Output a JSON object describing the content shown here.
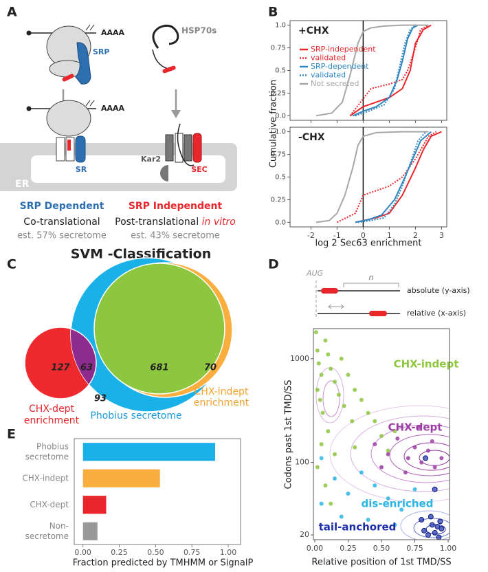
{
  "panel_labels": [
    "A",
    "B",
    "C",
    "D",
    "E"
  ],
  "panel_a": {
    "poly_a_1": "AAAA",
    "srp": "SRP",
    "poly_a_2": "AAAA",
    "sr": "SR",
    "hsp70": "HSP70s",
    "kar2": "Kar2",
    "sec": "SEC",
    "er": "ER",
    "left": {
      "title": "SRP Dependent",
      "mode": "Co-translational",
      "estimate": "est. 57% secretome"
    },
    "right": {
      "title": "SRP Independent",
      "mode": "Post-translational ",
      "mode_emphasis": "in vitro",
      "estimate": "est. 43% secretome"
    }
  },
  "panel_c": {
    "title": "SVM -Classification",
    "counts": {
      "dept_only": "127",
      "dept_phobius": "63",
      "all_three": "681",
      "indept_only": "70",
      "phobius_only": "93"
    },
    "dept_label": [
      "CHX-dept",
      "enrichment"
    ],
    "phobius_label": "Phobius secretome",
    "indept_label": [
      "CHX-indept",
      "enrichment"
    ]
  },
  "panel_d_schematic": {
    "start": "AUG",
    "n": "n",
    "absolute": "absolute (y-axis)",
    "relative": "relative (x-axis)"
  },
  "chart_data": [
    {
      "type": "line",
      "xlabel": "log 2 Sec63 enrichment",
      "ylabel": "Cumulative fraction",
      "xlim": [
        -2.8,
        3.2
      ],
      "xticks": [
        -2,
        -1,
        0,
        1,
        2,
        3
      ],
      "ylim": [
        -0.05,
        1.05
      ],
      "yticks": [
        {
          "value": 0,
          "label": "0.0"
        },
        0.25,
        0.5,
        0.75,
        {
          "value": 1,
          "label": "1.0"
        }
      ],
      "reference_x": 0,
      "legend": [
        {
          "name": "SRP-independent",
          "color": "#e8262b",
          "dash": "solid"
        },
        {
          "name": "validated",
          "color": "#e8262b",
          "dash": "dotted"
        },
        {
          "name": "SRP-dependent",
          "color": "#2e86c1",
          "dash": "solid"
        },
        {
          "name": "validated",
          "color": "#2e86c1",
          "dash": "dotted"
        },
        {
          "name": "Not secreted",
          "color": "#a6a6a6",
          "dash": "solid"
        }
      ],
      "panels": [
        {
          "label": "+CHX",
          "series": [
            {
              "x": [
                -0.5,
                0,
                0.5,
                1,
                1.5,
                1.8,
                2.0,
                2.3,
                2.6
              ],
              "values": [
                0,
                0.1,
                0.15,
                0.2,
                0.3,
                0.5,
                0.8,
                0.95,
                1
              ]
            },
            {
              "x": [
                -0.5,
                -0.1,
                0.3,
                1.0,
                1.5,
                1.7,
                2.0,
                2.2,
                2.5
              ],
              "values": [
                0,
                0.15,
                0.3,
                0.35,
                0.4,
                0.5,
                0.75,
                0.95,
                1
              ]
            },
            {
              "x": [
                -0.4,
                0,
                0.5,
                1.0,
                1.3,
                1.5,
                1.7,
                1.9,
                2.1
              ],
              "values": [
                0,
                0.05,
                0.1,
                0.2,
                0.4,
                0.6,
                0.85,
                0.97,
                1
              ]
            },
            {
              "x": [
                -0.3,
                0.2,
                0.8,
                1.2,
                1.4,
                1.6,
                1.8,
                2.0
              ],
              "values": [
                0,
                0.05,
                0.12,
                0.3,
                0.55,
                0.8,
                0.95,
                1
              ]
            },
            {
              "x": [
                -1.8,
                -1.2,
                -0.8,
                -0.5,
                -0.2,
                0,
                0.3,
                0.8,
                1.5,
                2.5
              ],
              "values": [
                0,
                0.03,
                0.15,
                0.45,
                0.8,
                0.93,
                0.97,
                0.99,
                1,
                1
              ]
            }
          ]
        },
        {
          "label": "-CHX",
          "series": [
            {
              "x": [
                -0.3,
                0,
                0.5,
                1,
                1.5,
                2,
                2.3,
                2.6,
                3
              ],
              "values": [
                0,
                0.02,
                0.05,
                0.1,
                0.3,
                0.6,
                0.8,
                0.95,
                1
              ]
            },
            {
              "x": [
                -1,
                -0.3,
                0,
                0.5,
                1,
                1.5,
                2,
                2.5,
                2.8
              ],
              "values": [
                0,
                0.1,
                0.3,
                0.35,
                0.4,
                0.5,
                0.7,
                0.95,
                1
              ]
            },
            {
              "x": [
                -0.3,
                0.2,
                0.7,
                1.2,
                1.6,
                1.9,
                2.2,
                2.6
              ],
              "values": [
                0,
                0.03,
                0.08,
                0.25,
                0.5,
                0.7,
                0.9,
                1
              ]
            },
            {
              "x": [
                -0.2,
                0.3,
                0.8,
                1.2,
                1.5,
                1.8,
                2.1,
                2.4
              ],
              "values": [
                0,
                0.02,
                0.05,
                0.2,
                0.4,
                0.65,
                0.9,
                1
              ]
            },
            {
              "x": [
                -1.8,
                -1.3,
                -1,
                -0.7,
                -0.4,
                -0.2,
                0,
                0.5,
                1.5,
                2.5
              ],
              "values": [
                0,
                0.02,
                0.1,
                0.3,
                0.6,
                0.85,
                0.95,
                0.99,
                1,
                1
              ]
            }
          ]
        }
      ]
    },
    {
      "type": "scatter",
      "xlabel": "Relative position of 1st TMD/SS",
      "ylabel": "Codons past 1st TMD/SS",
      "xlim": [
        -0.01,
        1.01
      ],
      "xticks": [
        {
          "value": 0,
          "label": "0.00"
        },
        0.25,
        {
          "value": 0.5,
          "label": "0.50"
        },
        0.75,
        {
          "value": 1,
          "label": "1.00"
        }
      ],
      "ylim": [
        18,
        1950
      ],
      "yticks": [
        20,
        100,
        1000
      ],
      "log_y": true,
      "series": [
        {
          "name": "CHX-indept",
          "color": "#8dc63f",
          "x": [
            0.01,
            0.02,
            0.03,
            0.05,
            0.02,
            0.04,
            0.08,
            0.1,
            0.12,
            0.06,
            0.15,
            0.18,
            0.2,
            0.25,
            0.3,
            0.22,
            0.35,
            0.28,
            0.4,
            0.1,
            0.05,
            0.15,
            0.45,
            0.5,
            0.02,
            0.3,
            0.6,
            0.08,
            0.55,
            0.12
          ],
          "values": [
            1800,
            1200,
            900,
            700,
            500,
            400,
            1500,
            1100,
            800,
            300,
            600,
            450,
            1000,
            700,
            500,
            350,
            400,
            250,
            300,
            200,
            150,
            120,
            250,
            180,
            90,
            140,
            200,
            60,
            130,
            40
          ]
        },
        {
          "name": "CHX-dept",
          "color": "#9b3fa3",
          "x": [
            0.45,
            0.55,
            0.62,
            0.7,
            0.75,
            0.8,
            0.85,
            0.9,
            0.68,
            0.78,
            0.88,
            0.5,
            0.95
          ],
          "values": [
            150,
            120,
            170,
            110,
            140,
            100,
            130,
            90,
            80,
            220,
            160,
            90,
            110
          ]
        },
        {
          "name": "dis-enriched",
          "color": "#29b6e6",
          "x": [
            0.05,
            0.15,
            0.25,
            0.35,
            0.45,
            0.55,
            0.65,
            0.75,
            0.2,
            0.4,
            0.6,
            0.05
          ],
          "values": [
            110,
            70,
            50,
            80,
            60,
            45,
            35,
            55,
            30,
            28,
            25,
            40
          ]
        },
        {
          "name": "tail-anchored",
          "color": "#1c2fa8",
          "x": [
            0.8,
            0.82,
            0.85,
            0.88,
            0.9,
            0.92,
            0.93,
            0.95,
            0.87,
            0.94,
            0.9,
            0.83
          ],
          "values": [
            28,
            22,
            20,
            25,
            21,
            24,
            19,
            23,
            30,
            27,
            55,
            110
          ]
        }
      ]
    },
    {
      "type": "bar",
      "orientation": "horizontal",
      "xlabel": "Fraction predicted by TMHMM or SignalP",
      "categories": [
        [
          "Phobius",
          "secretome"
        ],
        [
          "CHX-indept"
        ],
        [
          "CHX-dept"
        ],
        [
          "Non-",
          "secretome"
        ]
      ],
      "values": [
        0.91,
        0.53,
        0.16,
        0.1
      ],
      "colors": [
        "#1ab0e8",
        "#f9ae3d",
        "#e8262b",
        "#999999"
      ],
      "xlim": [
        -0.06,
        1.085
      ],
      "xticks": [
        {
          "value": 0,
          "label": "0.00"
        },
        0.25,
        {
          "value": 0.5,
          "label": "0.50"
        },
        0.75,
        {
          "value": 1,
          "label": "1.00"
        }
      ]
    }
  ]
}
